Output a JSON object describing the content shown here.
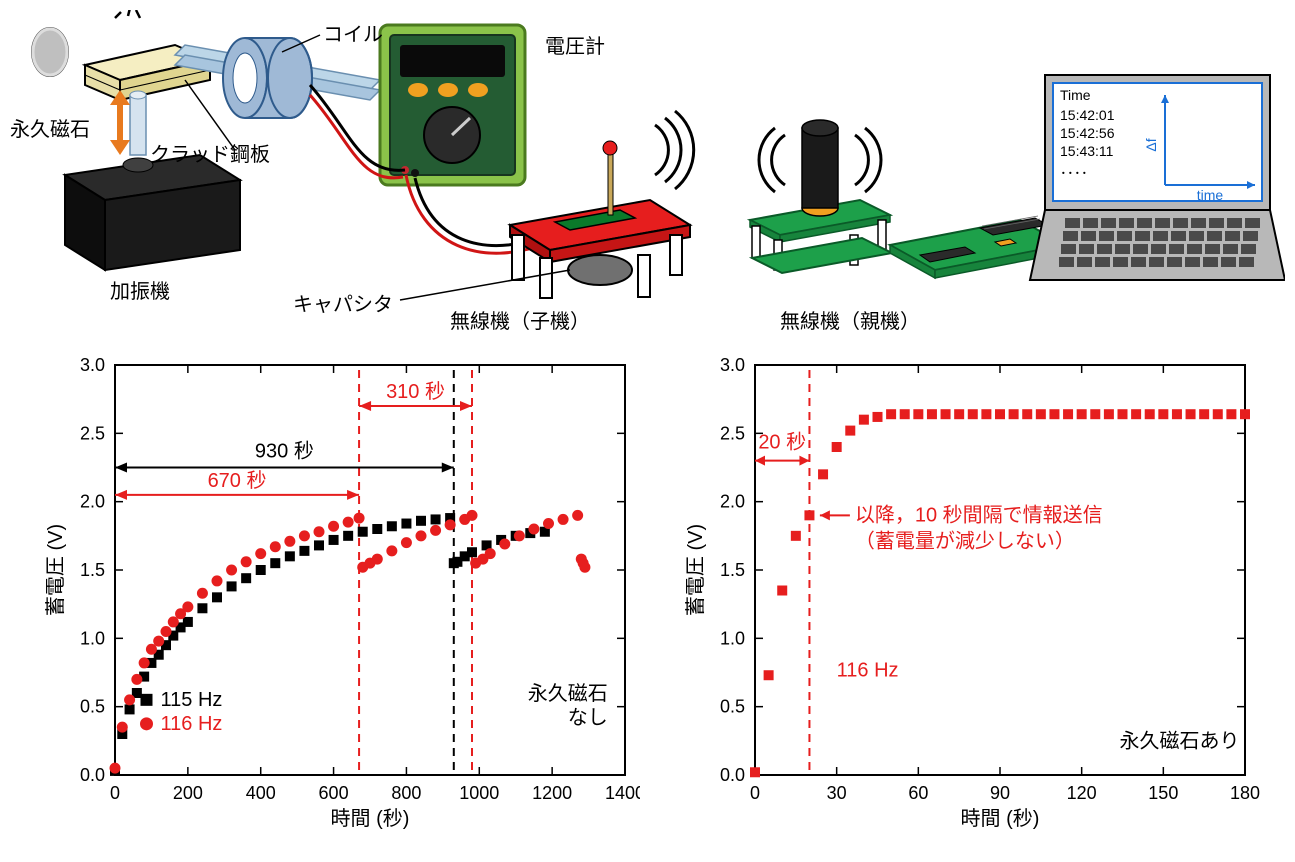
{
  "schematic": {
    "labels": {
      "coil": "コイル",
      "voltmeter": "電圧計",
      "magnet": "永久磁石",
      "clad_steel": "クラッド鋼板",
      "shaker": "加振機",
      "capacitor": "キャパシタ",
      "tx_child": "無線機（子機）",
      "tx_parent": "無線機（親機）"
    },
    "laptop_screen": {
      "header": "Time",
      "lines": [
        "15:42:01",
        "15:42:56",
        "15:43:11",
        "．．．．"
      ],
      "ylabel": "Δf",
      "xlabel": "time"
    },
    "colors": {
      "coil": "#9fb9d6",
      "coil_edge": "#2f5b8c",
      "voltmeter_body": "#245c33",
      "voltmeter_border": "#8bc34a",
      "voltmeter_screen": "#0a0a0a",
      "voltmeter_buttons": "#f0a020",
      "voltmeter_dial": "#2a2a2a",
      "shaker": "#1a1a1a",
      "beam": "#bcd6e8",
      "block_yellow": "#f5eec2",
      "arrow_orange": "#e87a1f",
      "magnet_gray": "#8a8a8a",
      "tx_table_red": "#e61e1e",
      "tx_led": "#e61e1e",
      "tx_chip_green": "#0a7a2a",
      "pcb_green": "#1da04a",
      "laptop_gray": "#b8b8b8",
      "laptop_dark": "#4a4a4a",
      "screen_border": "#1a6fd6",
      "wire_red": "#d01515",
      "wire_black": "#000000",
      "text": "#000000"
    }
  },
  "chart_left": {
    "type": "scatter",
    "title": "",
    "xlabel": "時間 (秒)",
    "ylabel": "蓄電圧 (V)",
    "xlim": [
      0,
      1400
    ],
    "xtick_step": 200,
    "ylim": [
      0,
      3.0
    ],
    "ytick_step": 0.5,
    "annotations": {
      "t930": "930 秒",
      "t670": "670 秒",
      "t310": "310 秒",
      "corner": "永久磁石\nなし"
    },
    "legend": [
      {
        "label": "115 Hz",
        "marker": "square",
        "color": "#000000"
      },
      {
        "label": "116 Hz",
        "marker": "circle",
        "color": "#e61e1e"
      }
    ],
    "vlines": [
      {
        "x": 670,
        "color": "#e61e1e",
        "dash": true
      },
      {
        "x": 930,
        "color": "#000000",
        "dash": true
      },
      {
        "x": 980,
        "color": "#e61e1e",
        "dash": true
      }
    ],
    "series_115": {
      "color": "#000000",
      "marker": "square",
      "x": [
        0,
        20,
        40,
        60,
        80,
        100,
        120,
        140,
        160,
        180,
        200,
        240,
        280,
        320,
        360,
        400,
        440,
        480,
        520,
        560,
        600,
        640,
        680,
        720,
        760,
        800,
        840,
        880,
        920,
        930,
        940,
        960,
        980,
        1020,
        1060,
        1100,
        1140,
        1180
      ],
      "y": [
        0.03,
        0.3,
        0.48,
        0.6,
        0.72,
        0.82,
        0.88,
        0.95,
        1.02,
        1.08,
        1.12,
        1.22,
        1.3,
        1.38,
        1.44,
        1.5,
        1.55,
        1.6,
        1.64,
        1.68,
        1.72,
        1.75,
        1.78,
        1.8,
        1.82,
        1.84,
        1.86,
        1.87,
        1.88,
        1.55,
        1.56,
        1.6,
        1.63,
        1.68,
        1.72,
        1.75,
        1.77,
        1.78
      ]
    },
    "series_116": {
      "color": "#e61e1e",
      "marker": "circle",
      "x": [
        0,
        20,
        40,
        60,
        80,
        100,
        120,
        140,
        160,
        180,
        200,
        240,
        280,
        320,
        360,
        400,
        440,
        480,
        520,
        560,
        600,
        640,
        670,
        680,
        700,
        720,
        760,
        800,
        840,
        880,
        920,
        960,
        980,
        990,
        1010,
        1030,
        1070,
        1110,
        1150,
        1190,
        1230,
        1270,
        1280,
        1285,
        1290
      ],
      "y": [
        0.05,
        0.35,
        0.55,
        0.7,
        0.82,
        0.92,
        0.98,
        1.05,
        1.12,
        1.18,
        1.23,
        1.33,
        1.42,
        1.5,
        1.56,
        1.62,
        1.67,
        1.71,
        1.75,
        1.78,
        1.82,
        1.85,
        1.88,
        1.52,
        1.55,
        1.58,
        1.64,
        1.7,
        1.75,
        1.79,
        1.83,
        1.87,
        1.9,
        1.55,
        1.58,
        1.62,
        1.69,
        1.75,
        1.8,
        1.84,
        1.87,
        1.9,
        1.58,
        1.55,
        1.52
      ]
    },
    "font_axis": 20,
    "font_tick": 18,
    "font_legend": 20,
    "font_ann": 20,
    "bg": "#ffffff",
    "axis_color": "#000000"
  },
  "chart_right": {
    "type": "scatter",
    "xlabel": "時間 (秒)",
    "ylabel": "蓄電圧 (V)",
    "xlim": [
      0,
      180
    ],
    "xtick_step": 30,
    "ylim": [
      0,
      3.0
    ],
    "ytick_step": 0.5,
    "annotations": {
      "t20": "20 秒",
      "note": "以降，10 秒間隔で情報送信\n（蓄電量が減少しない）",
      "legend_label": "116 Hz",
      "corner": "永久磁石あり"
    },
    "vlines": [
      {
        "x": 20,
        "color": "#e61e1e",
        "dash": true
      }
    ],
    "series": {
      "color": "#e61e1e",
      "marker": "square",
      "x": [
        0,
        5,
        10,
        15,
        20,
        25,
        30,
        35,
        40,
        45,
        50,
        55,
        60,
        65,
        70,
        75,
        80,
        85,
        90,
        95,
        100,
        105,
        110,
        115,
        120,
        125,
        130,
        135,
        140,
        145,
        150,
        155,
        160,
        165,
        170,
        175,
        180
      ],
      "y": [
        0.02,
        0.73,
        1.35,
        1.75,
        1.9,
        2.2,
        2.4,
        2.52,
        2.6,
        2.62,
        2.64,
        2.64,
        2.64,
        2.64,
        2.64,
        2.64,
        2.64,
        2.64,
        2.64,
        2.64,
        2.64,
        2.64,
        2.64,
        2.64,
        2.64,
        2.64,
        2.64,
        2.64,
        2.64,
        2.64,
        2.64,
        2.64,
        2.64,
        2.64,
        2.64,
        2.64,
        2.64
      ]
    },
    "font_axis": 20,
    "font_tick": 18,
    "font_ann": 20,
    "bg": "#ffffff",
    "axis_color": "#000000"
  }
}
